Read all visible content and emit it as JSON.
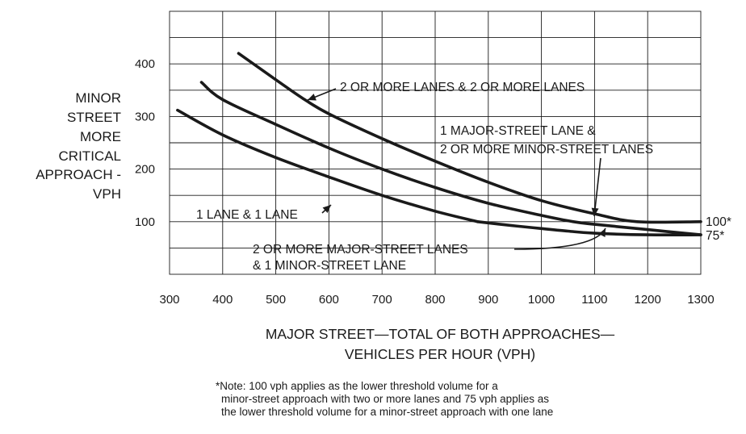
{
  "chart_data": {
    "type": "line",
    "title": "",
    "xlabel_lines": [
      "MAJOR STREET—TOTAL OF BOTH APPROACHES—",
      "VEHICLES PER HOUR (VPH)"
    ],
    "ylabel_lines": [
      "MINOR",
      "STREET",
      "MORE",
      "CRITICAL",
      "APPROACH -",
      "VPH"
    ],
    "xlim": [
      300,
      1300
    ],
    "ylim": [
      0,
      500
    ],
    "xticks": [
      300,
      400,
      500,
      600,
      700,
      800,
      900,
      1000,
      1100,
      1200,
      1300
    ],
    "yticks": [
      100,
      200,
      300,
      400
    ],
    "grid": true,
    "series": [
      {
        "name": "2 OR MORE LANES & 2 OR MORE LANES",
        "x": [
          430,
          500,
          550,
          600,
          700,
          800,
          900,
          1000,
          1100,
          1180,
          1300
        ],
        "y": [
          420,
          370,
          335,
          305,
          258,
          215,
          175,
          140,
          115,
          100,
          100
        ]
      },
      {
        "name": "1 MAJOR-STREET LANE & 2 OR MORE MINOR-STREET LANES",
        "x": [
          360,
          400,
          500,
          600,
          700,
          800,
          900,
          1000,
          1060,
          1100,
          1200,
          1300
        ],
        "y": [
          365,
          332,
          285,
          240,
          200,
          165,
          135,
          112,
          100,
          95,
          85,
          75
        ]
      },
      {
        "name": "2 OR MORE MAJOR-STREET LANES & 1 MINOR-STREET LANE",
        "x": [
          880,
          950,
          1000,
          1050,
          1100,
          1200,
          1300
        ],
        "y": [
          100,
          92,
          87,
          82,
          78,
          75,
          75
        ]
      },
      {
        "name": "1 LANE & 1 LANE",
        "x": [
          315,
          400,
          500,
          600,
          700,
          800,
          880
        ],
        "y": [
          312,
          265,
          222,
          185,
          150,
          120,
          100
        ]
      }
    ],
    "annotations": [
      {
        "text": "2 OR MORE LANES & 2 OR MORE LANES"
      },
      {
        "text_lines": [
          "1 MAJOR-STREET LANE &",
          "2 OR MORE MINOR-STREET LANES"
        ]
      },
      {
        "text": "1 LANE & 1 LANE"
      },
      {
        "text_lines": [
          "2 OR MORE MAJOR-STREET LANES",
          "& 1 MINOR-STREET LANE"
        ]
      },
      {
        "text": "100*",
        "y": 100
      },
      {
        "text": "75*",
        "y": 75
      }
    ],
    "note_lines": [
      "*Note: 100 vph applies as the lower threshold volume for a",
      "minor-street approach with two or more lanes and 75 vph applies as",
      "the lower threshold volume for a minor-street approach with one lane"
    ]
  }
}
